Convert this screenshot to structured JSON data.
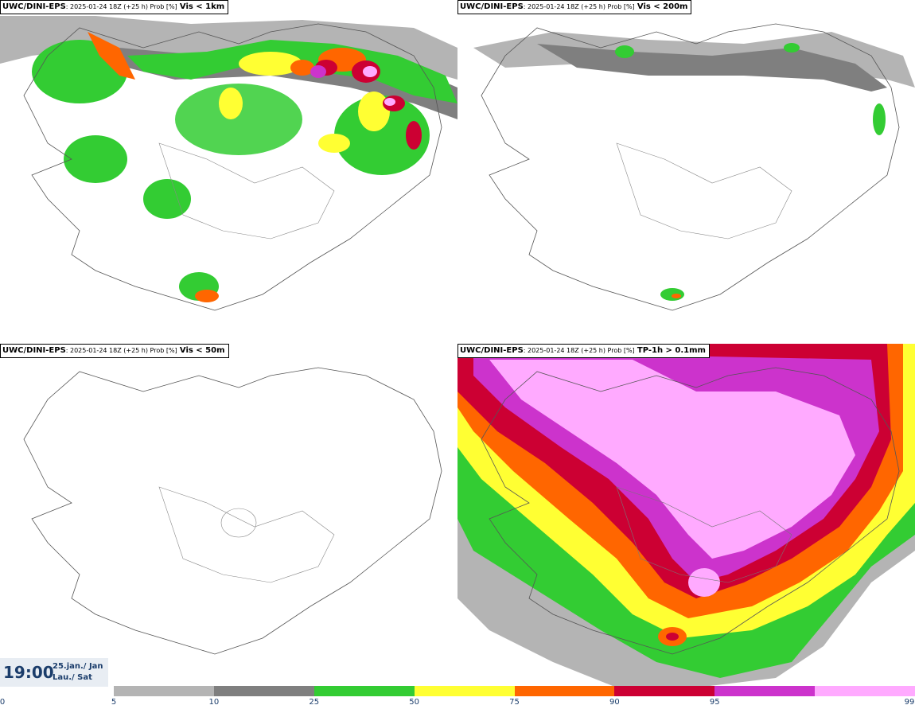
{
  "panels": [
    {
      "model": "UWC/DINI-EPS",
      "run": ": 2025-01-24 18Z (+25 h) Prob [%]",
      "var": "Vis < 1km"
    },
    {
      "model": "UWC/DINI-EPS",
      "run": ": 2025-01-24 18Z (+25 h) Prob [%]",
      "var": "Vis < 200m"
    },
    {
      "model": "UWC/DINI-EPS",
      "run": ": 2025-01-24 18Z (+25 h) Prob [%]",
      "var": "Vis < 50m"
    },
    {
      "model": "UWC/DINI-EPS",
      "run": ": 2025-01-24 18Z (+25 h) Prob [%]",
      "var": "TP-1h > 0.1mm"
    }
  ],
  "time": {
    "hour": "19:00",
    "date_line1": "25.jan./ Jan",
    "date_line2": "Lau./ Sat"
  },
  "legend": {
    "ticks": [
      "0",
      "5",
      "10",
      "25",
      "50",
      "75",
      "90",
      "95",
      "99"
    ],
    "colors": [
      "#b4b4b4",
      "#7f7f7f",
      "#33cc33",
      "#ffff33",
      "#ff6600",
      "#cc0033",
      "#cc33cc",
      "#ffaaff"
    ]
  }
}
